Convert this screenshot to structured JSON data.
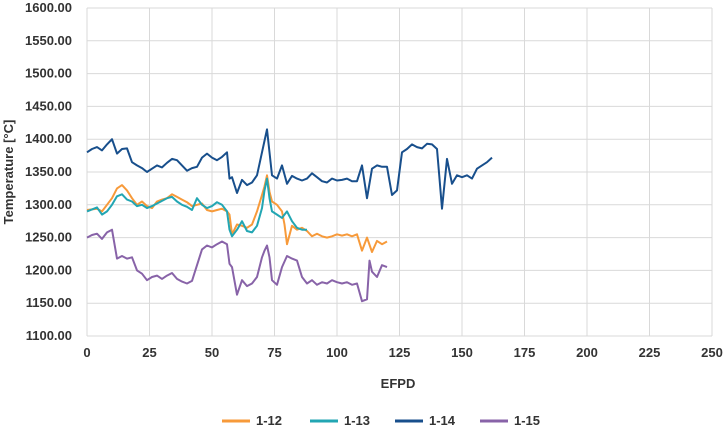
{
  "chart_data": {
    "type": "line",
    "title": "",
    "xlabel": "EFPD",
    "ylabel": "Temperature [°C]",
    "xlim": [
      0,
      250
    ],
    "ylim": [
      1100,
      1600
    ],
    "x_ticks": [
      0,
      25,
      50,
      75,
      100,
      125,
      150,
      175,
      200,
      225,
      250
    ],
    "y_ticks": [
      "1100.00",
      "1150.00",
      "1200.00",
      "1250.00",
      "1300.00",
      "1350.00",
      "1400.00",
      "1450.00",
      "1500.00",
      "1550.00",
      "1600.00"
    ],
    "grid": "vertical and horizontal",
    "legend_position": "bottom",
    "series": [
      {
        "name": "1-12",
        "color": "#f79a3a",
        "points": [
          [
            0,
            1292
          ],
          [
            4,
            1294
          ],
          [
            6,
            1290
          ],
          [
            8,
            1300
          ],
          [
            10,
            1310
          ],
          [
            12,
            1325
          ],
          [
            14,
            1330
          ],
          [
            16,
            1322
          ],
          [
            18,
            1310
          ],
          [
            20,
            1300
          ],
          [
            22,
            1305
          ],
          [
            24,
            1298
          ],
          [
            26,
            1295
          ],
          [
            28,
            1305
          ],
          [
            30,
            1308
          ],
          [
            32,
            1310
          ],
          [
            34,
            1316
          ],
          [
            36,
            1312
          ],
          [
            38,
            1308
          ],
          [
            40,
            1304
          ],
          [
            42,
            1298
          ],
          [
            44,
            1300
          ],
          [
            46,
            1302
          ],
          [
            48,
            1292
          ],
          [
            50,
            1290
          ],
          [
            52,
            1292
          ],
          [
            54,
            1294
          ],
          [
            56,
            1290
          ],
          [
            57,
            1285
          ],
          [
            58,
            1255
          ],
          [
            60,
            1270
          ],
          [
            62,
            1268
          ],
          [
            64,
            1265
          ],
          [
            66,
            1270
          ],
          [
            68,
            1290
          ],
          [
            70,
            1315
          ],
          [
            71,
            1328
          ],
          [
            72,
            1345
          ],
          [
            73,
            1320
          ],
          [
            74,
            1305
          ],
          [
            76,
            1300
          ],
          [
            78,
            1290
          ],
          [
            79,
            1270
          ],
          [
            80,
            1240
          ],
          [
            82,
            1268
          ],
          [
            84,
            1262
          ],
          [
            86,
            1265
          ],
          [
            88,
            1260
          ],
          [
            90,
            1252
          ],
          [
            92,
            1256
          ],
          [
            94,
            1252
          ],
          [
            96,
            1250
          ],
          [
            98,
            1252
          ],
          [
            100,
            1255
          ],
          [
            102,
            1253
          ],
          [
            104,
            1255
          ],
          [
            106,
            1252
          ],
          [
            108,
            1255
          ],
          [
            110,
            1230
          ],
          [
            112,
            1250
          ],
          [
            114,
            1228
          ],
          [
            116,
            1245
          ],
          [
            118,
            1240
          ],
          [
            120,
            1244
          ]
        ]
      },
      {
        "name": "1-13",
        "color": "#22a6b3",
        "points": [
          [
            0,
            1290
          ],
          [
            2,
            1293
          ],
          [
            4,
            1296
          ],
          [
            6,
            1285
          ],
          [
            8,
            1290
          ],
          [
            10,
            1300
          ],
          [
            12,
            1313
          ],
          [
            14,
            1316
          ],
          [
            16,
            1308
          ],
          [
            18,
            1305
          ],
          [
            20,
            1298
          ],
          [
            22,
            1300
          ],
          [
            24,
            1295
          ],
          [
            26,
            1298
          ],
          [
            28,
            1302
          ],
          [
            30,
            1306
          ],
          [
            32,
            1310
          ],
          [
            34,
            1312
          ],
          [
            36,
            1305
          ],
          [
            38,
            1300
          ],
          [
            40,
            1297
          ],
          [
            42,
            1292
          ],
          [
            44,
            1310
          ],
          [
            46,
            1300
          ],
          [
            48,
            1295
          ],
          [
            50,
            1298
          ],
          [
            52,
            1304
          ],
          [
            54,
            1300
          ],
          [
            56,
            1290
          ],
          [
            57,
            1262
          ],
          [
            58,
            1252
          ],
          [
            60,
            1262
          ],
          [
            62,
            1275
          ],
          [
            64,
            1260
          ],
          [
            66,
            1258
          ],
          [
            68,
            1268
          ],
          [
            70,
            1295
          ],
          [
            71,
            1322
          ],
          [
            72,
            1340
          ],
          [
            73,
            1310
          ],
          [
            74,
            1290
          ],
          [
            76,
            1285
          ],
          [
            78,
            1280
          ],
          [
            80,
            1290
          ],
          [
            82,
            1275
          ],
          [
            84,
            1265
          ],
          [
            86,
            1262
          ],
          [
            88,
            1262
          ]
        ]
      },
      {
        "name": "1-14",
        "color": "#184f8c",
        "points": [
          [
            0,
            1380
          ],
          [
            2,
            1385
          ],
          [
            4,
            1388
          ],
          [
            6,
            1383
          ],
          [
            8,
            1392
          ],
          [
            10,
            1400
          ],
          [
            12,
            1378
          ],
          [
            14,
            1385
          ],
          [
            16,
            1386
          ],
          [
            18,
            1365
          ],
          [
            20,
            1360
          ],
          [
            22,
            1356
          ],
          [
            24,
            1350
          ],
          [
            26,
            1355
          ],
          [
            28,
            1360
          ],
          [
            30,
            1357
          ],
          [
            32,
            1364
          ],
          [
            34,
            1370
          ],
          [
            36,
            1368
          ],
          [
            38,
            1360
          ],
          [
            40,
            1352
          ],
          [
            42,
            1356
          ],
          [
            44,
            1358
          ],
          [
            46,
            1372
          ],
          [
            48,
            1378
          ],
          [
            50,
            1372
          ],
          [
            52,
            1368
          ],
          [
            54,
            1373
          ],
          [
            56,
            1380
          ],
          [
            57,
            1340
          ],
          [
            58,
            1342
          ],
          [
            60,
            1318
          ],
          [
            62,
            1338
          ],
          [
            64,
            1330
          ],
          [
            66,
            1334
          ],
          [
            68,
            1345
          ],
          [
            70,
            1380
          ],
          [
            72,
            1415
          ],
          [
            73,
            1380
          ],
          [
            74,
            1345
          ],
          [
            76,
            1340
          ],
          [
            78,
            1360
          ],
          [
            80,
            1332
          ],
          [
            82,
            1344
          ],
          [
            84,
            1340
          ],
          [
            86,
            1337
          ],
          [
            88,
            1340
          ],
          [
            90,
            1348
          ],
          [
            92,
            1342
          ],
          [
            94,
            1336
          ],
          [
            96,
            1334
          ],
          [
            98,
            1340
          ],
          [
            100,
            1337
          ],
          [
            102,
            1338
          ],
          [
            104,
            1340
          ],
          [
            106,
            1336
          ],
          [
            108,
            1336
          ],
          [
            110,
            1360
          ],
          [
            112,
            1310
          ],
          [
            114,
            1355
          ],
          [
            116,
            1360
          ],
          [
            118,
            1358
          ],
          [
            120,
            1358
          ],
          [
            122,
            1315
          ],
          [
            124,
            1322
          ],
          [
            126,
            1380
          ],
          [
            128,
            1385
          ],
          [
            130,
            1392
          ],
          [
            132,
            1388
          ],
          [
            134,
            1386
          ],
          [
            136,
            1393
          ],
          [
            138,
            1392
          ],
          [
            140,
            1385
          ],
          [
            141,
            1340
          ],
          [
            142,
            1294
          ],
          [
            144,
            1370
          ],
          [
            146,
            1332
          ],
          [
            148,
            1345
          ],
          [
            150,
            1342
          ],
          [
            152,
            1345
          ],
          [
            154,
            1340
          ],
          [
            156,
            1355
          ],
          [
            158,
            1360
          ],
          [
            160,
            1365
          ],
          [
            162,
            1372
          ]
        ]
      },
      {
        "name": "1-15",
        "color": "#8863a8",
        "points": [
          [
            0,
            1250
          ],
          [
            2,
            1254
          ],
          [
            4,
            1256
          ],
          [
            6,
            1248
          ],
          [
            8,
            1258
          ],
          [
            10,
            1262
          ],
          [
            12,
            1218
          ],
          [
            14,
            1222
          ],
          [
            16,
            1218
          ],
          [
            18,
            1220
          ],
          [
            20,
            1200
          ],
          [
            22,
            1195
          ],
          [
            24,
            1185
          ],
          [
            26,
            1190
          ],
          [
            28,
            1192
          ],
          [
            30,
            1187
          ],
          [
            32,
            1192
          ],
          [
            34,
            1196
          ],
          [
            36,
            1187
          ],
          [
            38,
            1183
          ],
          [
            40,
            1180
          ],
          [
            42,
            1184
          ],
          [
            44,
            1208
          ],
          [
            46,
            1232
          ],
          [
            48,
            1238
          ],
          [
            50,
            1235
          ],
          [
            52,
            1240
          ],
          [
            54,
            1244
          ],
          [
            56,
            1240
          ],
          [
            57,
            1210
          ],
          [
            58,
            1205
          ],
          [
            60,
            1163
          ],
          [
            62,
            1185
          ],
          [
            64,
            1176
          ],
          [
            66,
            1180
          ],
          [
            68,
            1190
          ],
          [
            70,
            1220
          ],
          [
            71,
            1230
          ],
          [
            72,
            1238
          ],
          [
            73,
            1220
          ],
          [
            74,
            1185
          ],
          [
            76,
            1178
          ],
          [
            78,
            1205
          ],
          [
            80,
            1222
          ],
          [
            82,
            1218
          ],
          [
            84,
            1215
          ],
          [
            86,
            1190
          ],
          [
            88,
            1180
          ],
          [
            90,
            1185
          ],
          [
            92,
            1178
          ],
          [
            94,
            1182
          ],
          [
            96,
            1180
          ],
          [
            98,
            1185
          ],
          [
            100,
            1182
          ],
          [
            102,
            1180
          ],
          [
            104,
            1182
          ],
          [
            106,
            1178
          ],
          [
            108,
            1180
          ],
          [
            110,
            1153
          ],
          [
            112,
            1156
          ],
          [
            113,
            1215
          ],
          [
            114,
            1198
          ],
          [
            116,
            1190
          ],
          [
            118,
            1208
          ],
          [
            120,
            1205
          ]
        ]
      }
    ]
  }
}
